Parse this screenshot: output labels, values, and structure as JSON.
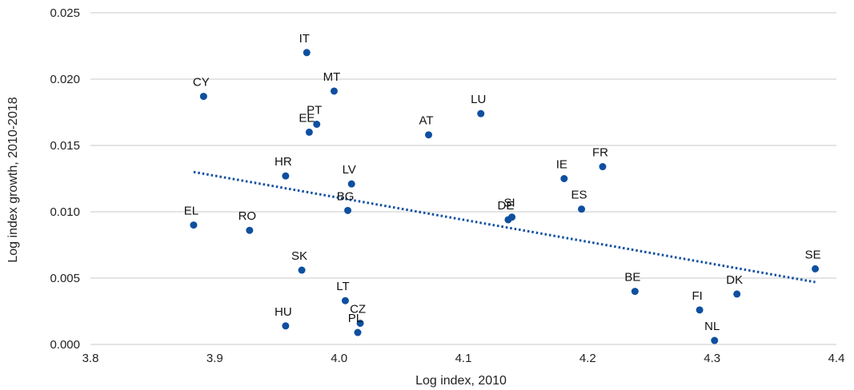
{
  "chart_data": {
    "type": "scatter",
    "title": "",
    "xlabel": "Log index, 2010",
    "ylabel": "Log index growth, 2010-2018",
    "xlim": [
      3.8,
      4.4
    ],
    "ylim": [
      0.0,
      0.025
    ],
    "x_ticks": [
      "3.8",
      "3.9",
      "4.0",
      "4.1",
      "4.2",
      "4.3",
      "4.4"
    ],
    "y_ticks": [
      "0.000",
      "0.005",
      "0.010",
      "0.015",
      "0.020",
      "0.025"
    ],
    "grid": "horizontal",
    "point_color": "#0f4fa0",
    "trend_color": "#0f4fa0",
    "points": [
      {
        "label": "IT",
        "x": 3.974,
        "y": 0.022
      },
      {
        "label": "CY",
        "x": 3.891,
        "y": 0.0187
      },
      {
        "label": "MT",
        "x": 3.996,
        "y": 0.0191
      },
      {
        "label": "PT",
        "x": 3.982,
        "y": 0.0166
      },
      {
        "label": "EE",
        "x": 3.976,
        "y": 0.016
      },
      {
        "label": "AT",
        "x": 4.072,
        "y": 0.0158
      },
      {
        "label": "LU",
        "x": 4.114,
        "y": 0.0174
      },
      {
        "label": "FR",
        "x": 4.212,
        "y": 0.0134
      },
      {
        "label": "IE",
        "x": 4.181,
        "y": 0.0125
      },
      {
        "label": "HR",
        "x": 3.957,
        "y": 0.0127
      },
      {
        "label": "LV",
        "x": 4.01,
        "y": 0.0121
      },
      {
        "label": "BG",
        "x": 4.007,
        "y": 0.0101
      },
      {
        "label": "ES",
        "x": 4.195,
        "y": 0.0102
      },
      {
        "label": "SI",
        "x": 4.139,
        "y": 0.0096
      },
      {
        "label": "DE",
        "x": 4.136,
        "y": 0.0094
      },
      {
        "label": "EL",
        "x": 3.883,
        "y": 0.009
      },
      {
        "label": "RO",
        "x": 3.928,
        "y": 0.0086
      },
      {
        "label": "SE",
        "x": 4.383,
        "y": 0.0057
      },
      {
        "label": "SK",
        "x": 3.97,
        "y": 0.0056
      },
      {
        "label": "BE",
        "x": 4.238,
        "y": 0.004
      },
      {
        "label": "DK",
        "x": 4.32,
        "y": 0.0038
      },
      {
        "label": "LT",
        "x": 4.005,
        "y": 0.0033
      },
      {
        "label": "FI",
        "x": 4.29,
        "y": 0.0026
      },
      {
        "label": "CZ",
        "x": 4.017,
        "y": 0.0016
      },
      {
        "label": "HU",
        "x": 3.957,
        "y": 0.0014
      },
      {
        "label": "PL",
        "x": 4.015,
        "y": 0.0009
      },
      {
        "label": "NL",
        "x": 4.302,
        "y": 0.0003
      }
    ],
    "trendline": {
      "x": [
        3.883,
        4.383
      ],
      "y": [
        0.013,
        0.0047
      ]
    }
  }
}
